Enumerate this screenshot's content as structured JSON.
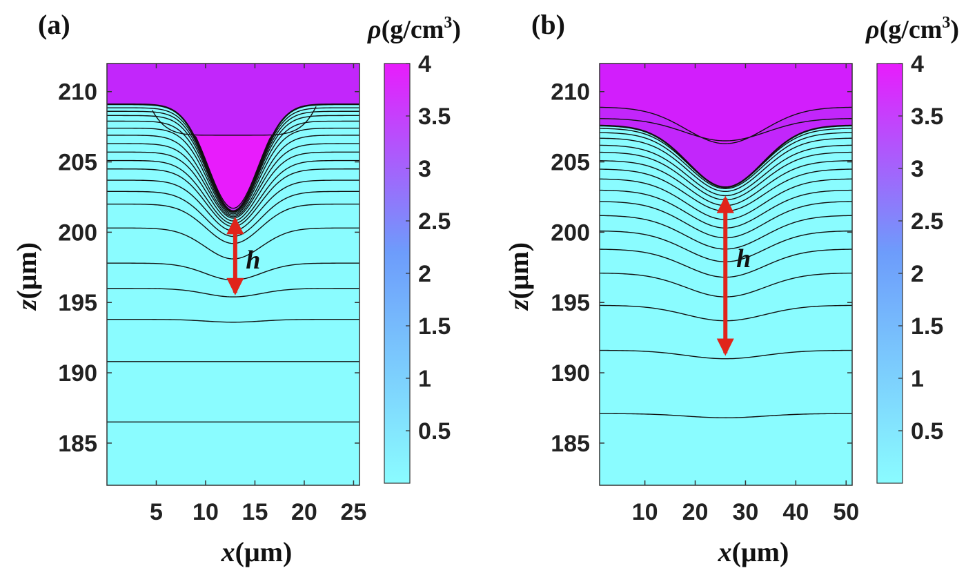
{
  "colors": {
    "low": "#8afcff",
    "mid": "#6d9cfb",
    "high": "#e81cfc",
    "contour": "#111111",
    "arrow": "#e0241b",
    "axis": "#333333"
  },
  "chart_data": [
    {
      "type": "heatmap",
      "panel_label": "(a)",
      "xlabel_var": "x",
      "xlabel_unit": "(μm)",
      "ylabel_var": "z",
      "ylabel_unit": "(μm)",
      "colorbar_label": "ρ(g/cm³)",
      "colorbar_label_parts": {
        "symbol": "ρ",
        "unit": "(g/cm",
        "sup": "3",
        "close": ")"
      },
      "xlim": [
        0,
        25.6
      ],
      "ylim": [
        182,
        212
      ],
      "xticks": [
        5,
        10,
        15,
        20,
        25
      ],
      "yticks": [
        185,
        190,
        195,
        200,
        205,
        210
      ],
      "clim": [
        0,
        4
      ],
      "cticks": [
        0.5,
        1,
        1.5,
        2,
        2.5,
        3,
        3.5,
        4
      ],
      "interface": {
        "z_edge": 209.1,
        "z_min": 201.5,
        "x_center": 12.8,
        "width": 3.6
      },
      "contours": [
        {
          "z_edge": 186.5,
          "z_center": 186.5,
          "width": 4.0
        },
        {
          "z_edge": 190.8,
          "z_center": 190.8,
          "width": 4.0
        },
        {
          "z_edge": 193.8,
          "z_center": 193.6,
          "width": 4.0
        },
        {
          "z_edge": 196.0,
          "z_center": 195.4,
          "width": 4.0
        },
        {
          "z_edge": 197.8,
          "z_center": 196.6,
          "width": 4.0
        },
        {
          "z_edge": 200.3,
          "z_center": 198.1,
          "width": 4.0
        },
        {
          "z_edge": 202.0,
          "z_center": 199.2,
          "width": 3.9
        },
        {
          "z_edge": 202.9,
          "z_center": 199.7,
          "width": 3.9
        },
        {
          "z_edge": 203.7,
          "z_center": 200.1,
          "width": 3.8
        },
        {
          "z_edge": 204.5,
          "z_center": 200.4,
          "width": 3.8
        },
        {
          "z_edge": 205.1,
          "z_center": 200.6,
          "width": 3.8
        },
        {
          "z_edge": 205.7,
          "z_center": 200.8,
          "width": 3.7
        },
        {
          "z_edge": 206.3,
          "z_center": 201.0,
          "width": 3.7
        },
        {
          "z_edge": 206.9,
          "z_center": 201.1,
          "width": 3.7
        },
        {
          "z_edge": 207.4,
          "z_center": 201.2,
          "width": 3.6
        },
        {
          "z_edge": 207.9,
          "z_center": 201.3,
          "width": 3.6
        },
        {
          "z_edge": 208.3,
          "z_center": 201.4,
          "width": 3.6
        },
        {
          "z_edge": 208.6,
          "z_center": 201.45,
          "width": 3.6
        },
        {
          "z_edge": 208.85,
          "z_center": 201.5,
          "width": 3.6
        }
      ],
      "inner_contour": {
        "x_left": 4.6,
        "x_right": 21.2,
        "z_tip": 208.8,
        "z_flat": 206.9
      },
      "arrow": {
        "x": 13.0,
        "z_top": 201.3,
        "z_bottom": 195.3,
        "label": "h",
        "label_x": 14.5,
        "label_z": 198.0
      }
    },
    {
      "type": "heatmap",
      "panel_label": "(b)",
      "xlabel_var": "x",
      "xlabel_unit": "(μm)",
      "ylabel_var": "z",
      "ylabel_unit": "(μm)",
      "colorbar_label": "ρ(g/cm³)",
      "colorbar_label_parts": {
        "symbol": "ρ",
        "unit": "(g/cm",
        "sup": "3",
        "close": ")"
      },
      "xlim": [
        1,
        51.2
      ],
      "ylim": [
        182,
        212
      ],
      "xticks": [
        10,
        20,
        30,
        40,
        50
      ],
      "yticks": [
        185,
        190,
        195,
        200,
        205,
        210
      ],
      "clim": [
        0,
        4
      ],
      "cticks": [
        0.5,
        1,
        1.5,
        2,
        2.5,
        3,
        3.5,
        4
      ],
      "interface": {
        "z_edge": 207.6,
        "z_min": 203.2,
        "x_center": 26.0,
        "width": 10.5
      },
      "contours": [
        {
          "z_edge": 187.1,
          "z_center": 186.8,
          "width": 11.0
        },
        {
          "z_edge": 191.6,
          "z_center": 191.0,
          "width": 11.0
        },
        {
          "z_edge": 194.8,
          "z_center": 193.7,
          "width": 11.0
        },
        {
          "z_edge": 197.1,
          "z_center": 195.4,
          "width": 11.0
        },
        {
          "z_edge": 198.8,
          "z_center": 196.8,
          "width": 11.0
        },
        {
          "z_edge": 200.1,
          "z_center": 197.9,
          "width": 11.0
        },
        {
          "z_edge": 201.2,
          "z_center": 198.8,
          "width": 11.0
        },
        {
          "z_edge": 202.2,
          "z_center": 199.6,
          "width": 11.0
        },
        {
          "z_edge": 203.0,
          "z_center": 200.3,
          "width": 10.8
        },
        {
          "z_edge": 203.8,
          "z_center": 200.9,
          "width": 10.8
        },
        {
          "z_edge": 204.5,
          "z_center": 201.5,
          "width": 10.8
        },
        {
          "z_edge": 205.1,
          "z_center": 201.9,
          "width": 10.6
        },
        {
          "z_edge": 205.7,
          "z_center": 202.3,
          "width": 10.6
        },
        {
          "z_edge": 206.2,
          "z_center": 202.6,
          "width": 10.6
        },
        {
          "z_edge": 206.7,
          "z_center": 202.9,
          "width": 10.5
        },
        {
          "z_edge": 207.1,
          "z_center": 203.1,
          "width": 10.5
        },
        {
          "z_edge": 207.4,
          "z_center": 203.2,
          "width": 10.5
        }
      ],
      "upper_contours": [
        {
          "z_edge": 208.1,
          "z_center": 206.5,
          "width": 11.5
        },
        {
          "z_edge": 208.9,
          "z_center": 206.3,
          "width": 11.0
        }
      ],
      "arrow": {
        "x": 26.0,
        "z_top": 202.8,
        "z_bottom": 191.0,
        "label": "h",
        "label_x": 29.0,
        "label_z": 198.1
      }
    }
  ]
}
